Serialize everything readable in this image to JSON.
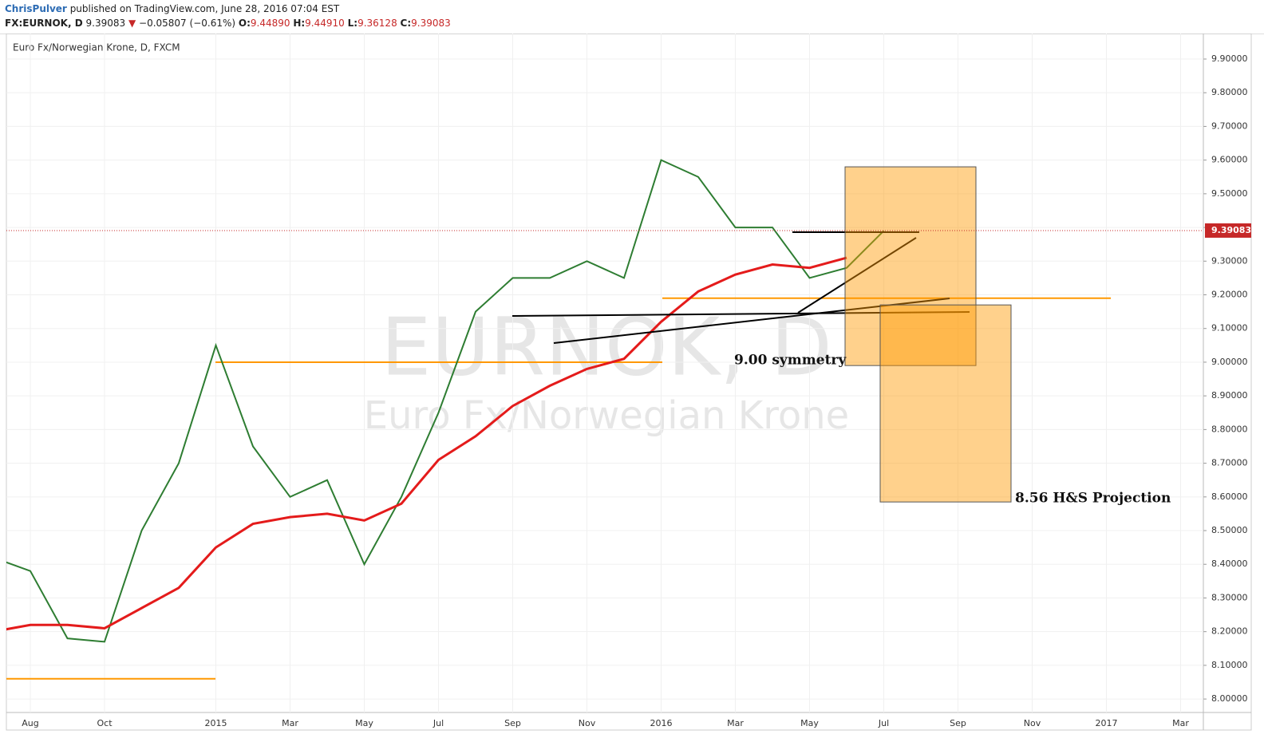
{
  "header": {
    "author": "ChrisPulver",
    "published": "published on TradingView.com, June 28, 2016 07:04 EST",
    "symbol": "FX:EURNOK, D",
    "price": "9.39083",
    "change": "−0.05807 (−0.61%)",
    "o_label": "O:",
    "open": "9.44890",
    "h_label": "H:",
    "high": "9.44910",
    "l_label": "L:",
    "low": "9.36128",
    "c_label": "C:",
    "close": "9.39083"
  },
  "chart_data": {
    "type": "line",
    "title": "Euro Fx/Norwegian Krone, D, FXCM",
    "watermark": "EURNOK, D",
    "watermark_sub": "Euro Fx/Norwegian Krone",
    "categories": [
      null,
      "Aug",
      null,
      "Oct",
      null,
      null,
      "2015",
      null,
      "Mar",
      null,
      "May",
      null,
      "Jul",
      null,
      "Sep",
      null,
      "Nov",
      null,
      "2016",
      null,
      "Mar",
      null,
      "May",
      null,
      "Jul",
      null,
      "Sep",
      null,
      "Nov",
      null,
      "2017",
      null,
      "Mar"
    ],
    "series": [
      {
        "color": "#2e7d32",
        "values": [
          8.42,
          8.38,
          8.18,
          8.17,
          8.5,
          8.7,
          9.05,
          8.75,
          8.6,
          8.65,
          8.4,
          8.6,
          8.85,
          9.15,
          9.25,
          9.25,
          9.3,
          9.25,
          9.6,
          9.55,
          9.4,
          9.4,
          9.25,
          9.28,
          9.39,
          null,
          null,
          null,
          null,
          null,
          null,
          null,
          null
        ]
      },
      {
        "color": "#e41b1b",
        "values": [
          8.2,
          8.22,
          8.22,
          8.21,
          8.27,
          8.33,
          8.45,
          8.52,
          8.54,
          8.55,
          8.53,
          8.58,
          8.71,
          8.78,
          8.87,
          8.93,
          8.98,
          9.01,
          9.12,
          9.21,
          9.26,
          9.29,
          9.28,
          9.31,
          null,
          null,
          null,
          null,
          null,
          null,
          null,
          null,
          null
        ]
      }
    ],
    "levels": [
      {
        "value": 8.06,
        "color": "#ff9800"
      },
      {
        "value": 9.0,
        "color": "#ff9800"
      },
      {
        "value": 9.19,
        "color": "#ff9800"
      }
    ],
    "zones": [
      {
        "top": 9.58,
        "bottom": 8.99,
        "label": "9.00 symmetry"
      },
      {
        "top": 9.17,
        "bottom": 8.585,
        "label": "8.56 H&S Projection"
      }
    ],
    "last_price": 9.39083,
    "ylim": [
      7.96,
      9.99
    ],
    "yticks": [
      {
        "value": 8.0,
        "label": "8.00000"
      },
      {
        "value": 8.1,
        "label": "8.10000"
      },
      {
        "value": 8.2,
        "label": "8.20000"
      },
      {
        "value": 8.3,
        "label": "8.30000"
      },
      {
        "value": 8.4,
        "label": "8.40000"
      },
      {
        "value": 8.5,
        "label": "8.50000"
      },
      {
        "value": 8.6,
        "label": "8.60000"
      },
      {
        "value": 8.7,
        "label": "8.70000"
      },
      {
        "value": 8.8,
        "label": "8.80000"
      },
      {
        "value": 8.9,
        "label": "8.90000"
      },
      {
        "value": 9.0,
        "label": "9.00000"
      },
      {
        "value": 9.1,
        "label": "9.10000"
      },
      {
        "value": 9.2,
        "label": "9.20000"
      },
      {
        "value": 9.3,
        "label": "9.30000"
      },
      {
        "value": 9.4,
        "label": "9.40000"
      },
      {
        "value": 9.5,
        "label": "9.50000"
      },
      {
        "value": 9.6,
        "label": "9.60000"
      },
      {
        "value": 9.7,
        "label": "9.70000"
      },
      {
        "value": 9.8,
        "label": "9.80000"
      },
      {
        "value": 9.9,
        "label": "9.90000"
      }
    ],
    "grid": true
  }
}
